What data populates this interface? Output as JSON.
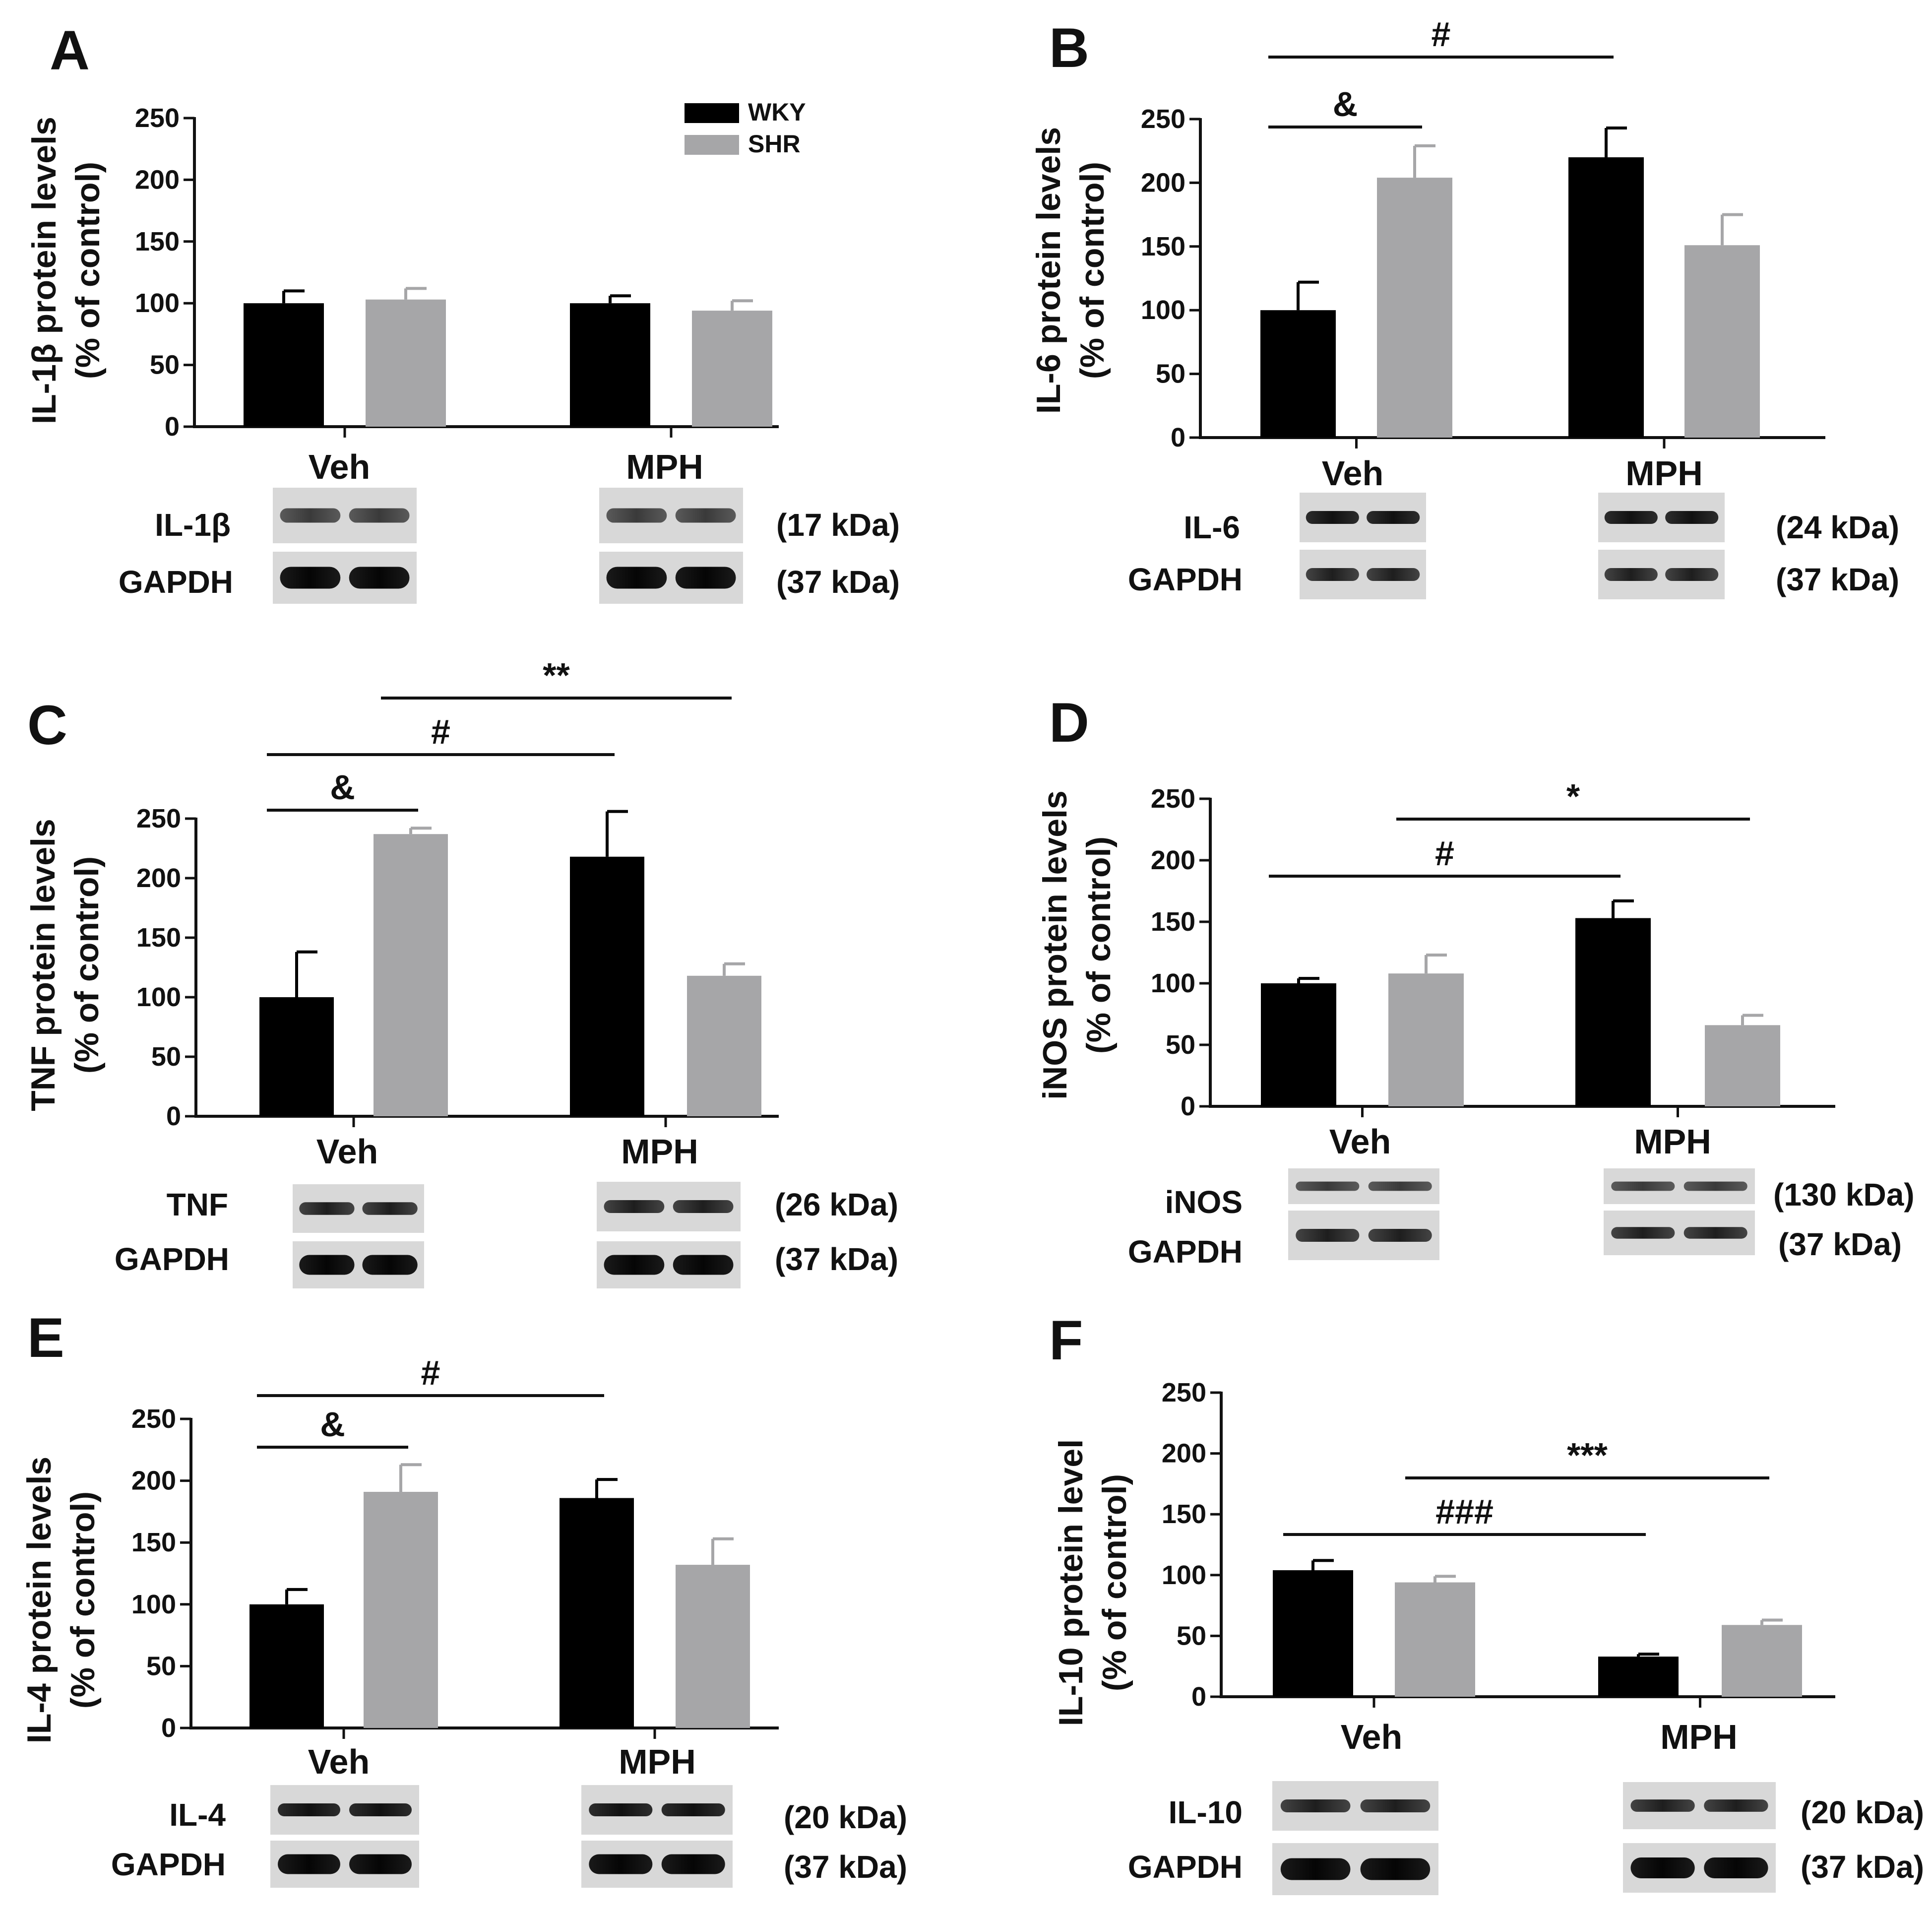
{
  "legend": [
    {
      "name": "WKY",
      "color": "#000000"
    },
    {
      "name": "SHR",
      "color": "#a6a6a8"
    }
  ],
  "chart_data": [
    {
      "panel": "A",
      "type": "bar",
      "ylabel_line1": "IL-1β protein levels",
      "ylabel_line2": "(% of control)",
      "ylim": [
        0,
        250
      ],
      "yticks": [
        "0",
        "50",
        "100",
        "150",
        "200",
        "250"
      ],
      "categories": [
        "Veh",
        "MPH"
      ],
      "series": [
        {
          "name": "WKY",
          "values": [
            100,
            100
          ],
          "errors": [
            10,
            6
          ]
        },
        {
          "name": "SHR",
          "values": [
            103,
            94
          ],
          "errors": [
            9,
            8
          ]
        }
      ],
      "annotations": [],
      "blots": [
        {
          "label": "IL-1β",
          "kda": "(17 kDa)",
          "tone": "light"
        },
        {
          "label": "GAPDH",
          "kda": "(37 kDa)",
          "tone": "strong"
        }
      ]
    },
    {
      "panel": "B",
      "type": "bar",
      "ylabel_line1": "IL-6 protein levels",
      "ylabel_line2": "(% of control)",
      "ylim": [
        0,
        250
      ],
      "yticks": [
        "0",
        "50",
        "100",
        "150",
        "200",
        "250"
      ],
      "categories": [
        "Veh",
        "MPH"
      ],
      "series": [
        {
          "name": "WKY",
          "values": [
            100,
            220
          ],
          "errors": [
            22,
            23
          ]
        },
        {
          "name": "SHR",
          "values": [
            204,
            151
          ],
          "errors": [
            25,
            24
          ]
        }
      ],
      "annotations": [
        {
          "symbol": "&",
          "from": "Veh WKY",
          "to": "Veh SHR"
        },
        {
          "symbol": "#",
          "from": "Veh WKY",
          "to": "MPH WKY"
        }
      ],
      "blots": [
        {
          "label": "IL-6",
          "kda": "(24 kDa)",
          "tone": "dark"
        },
        {
          "label": "GAPDH",
          "kda": "(37 kDa)",
          "tone": "medium"
        }
      ]
    },
    {
      "panel": "C",
      "type": "bar",
      "ylabel_line1": "TNF protein levels",
      "ylabel_line2": "(% of control)",
      "ylim": [
        0,
        250
      ],
      "yticks": [
        "0",
        "50",
        "100",
        "150",
        "200",
        "250"
      ],
      "categories": [
        "Veh",
        "MPH"
      ],
      "series": [
        {
          "name": "WKY",
          "values": [
            100,
            218
          ],
          "errors": [
            38,
            38
          ]
        },
        {
          "name": "SHR",
          "values": [
            237,
            118
          ],
          "errors": [
            5,
            10
          ]
        }
      ],
      "annotations": [
        {
          "symbol": "&",
          "from": "Veh WKY",
          "to": "Veh SHR"
        },
        {
          "symbol": "#",
          "from": "Veh WKY",
          "to": "MPH WKY"
        },
        {
          "symbol": "**",
          "from": "Veh SHR",
          "to": "MPH SHR"
        }
      ],
      "blots": [
        {
          "label": "TNF",
          "kda": "(26 kDa)",
          "tone": "medium"
        },
        {
          "label": "GAPDH",
          "kda": "(37 kDa)",
          "tone": "strong"
        }
      ]
    },
    {
      "panel": "D",
      "type": "bar",
      "ylabel_line1": "iNOS protein levels",
      "ylabel_line2": "(% of control)",
      "ylim": [
        0,
        250
      ],
      "yticks": [
        "0",
        "50",
        "100",
        "150",
        "200",
        "250"
      ],
      "categories": [
        "Veh",
        "MPH"
      ],
      "series": [
        {
          "name": "WKY",
          "values": [
            100,
            153
          ],
          "errors": [
            4,
            14
          ]
        },
        {
          "name": "SHR",
          "values": [
            108,
            66
          ],
          "errors": [
            15,
            8
          ]
        }
      ],
      "annotations": [
        {
          "symbol": "#",
          "from": "Veh WKY",
          "to": "MPH WKY"
        },
        {
          "symbol": "*",
          "from": "Veh SHR",
          "to": "MPH SHR"
        }
      ],
      "blots": [
        {
          "label": "iNOS",
          "kda": "(130 kDa)",
          "tone": "light"
        },
        {
          "label": "GAPDH",
          "kda": "(37 kDa)",
          "tone": "medium"
        }
      ]
    },
    {
      "panel": "E",
      "type": "bar",
      "ylabel_line1": "IL-4 protein levels",
      "ylabel_line2": "(% of control)",
      "ylim": [
        0,
        250
      ],
      "yticks": [
        "0",
        "50",
        "100",
        "150",
        "200",
        "250"
      ],
      "categories": [
        "Veh",
        "MPH"
      ],
      "series": [
        {
          "name": "WKY",
          "values": [
            100,
            186
          ],
          "errors": [
            12,
            15
          ]
        },
        {
          "name": "SHR",
          "values": [
            191,
            132
          ],
          "errors": [
            22,
            21
          ]
        }
      ],
      "annotations": [
        {
          "symbol": "&",
          "from": "Veh WKY",
          "to": "Veh SHR"
        },
        {
          "symbol": "#",
          "from": "Veh WKY",
          "to": "MPH WKY"
        }
      ],
      "blots": [
        {
          "label": "IL-4",
          "kda": "(20 kDa)",
          "tone": "dark"
        },
        {
          "label": "GAPDH",
          "kda": "(37 kDa)",
          "tone": "strong"
        }
      ]
    },
    {
      "panel": "F",
      "type": "bar",
      "ylabel_line1": "IL-10 protein level",
      "ylabel_line2": "(% of control)",
      "ylim": [
        0,
        250
      ],
      "yticks": [
        "0",
        "50",
        "100",
        "150",
        "200",
        "250"
      ],
      "categories": [
        "Veh",
        "MPH"
      ],
      "series": [
        {
          "name": "WKY",
          "values": [
            104,
            33
          ],
          "errors": [
            8,
            2
          ]
        },
        {
          "name": "SHR",
          "values": [
            94,
            59
          ],
          "errors": [
            5,
            4
          ]
        }
      ],
      "annotations": [
        {
          "symbol": "###",
          "from": "Veh WKY",
          "to": "MPH WKY"
        },
        {
          "symbol": "***",
          "from": "Veh SHR",
          "to": "MPH SHR"
        }
      ],
      "blots": [
        {
          "label": "IL-10",
          "kda": "(20 kDa)",
          "tone": "medium"
        },
        {
          "label": "GAPDH",
          "kda": "(37 kDa)",
          "tone": "strong"
        }
      ]
    }
  ]
}
